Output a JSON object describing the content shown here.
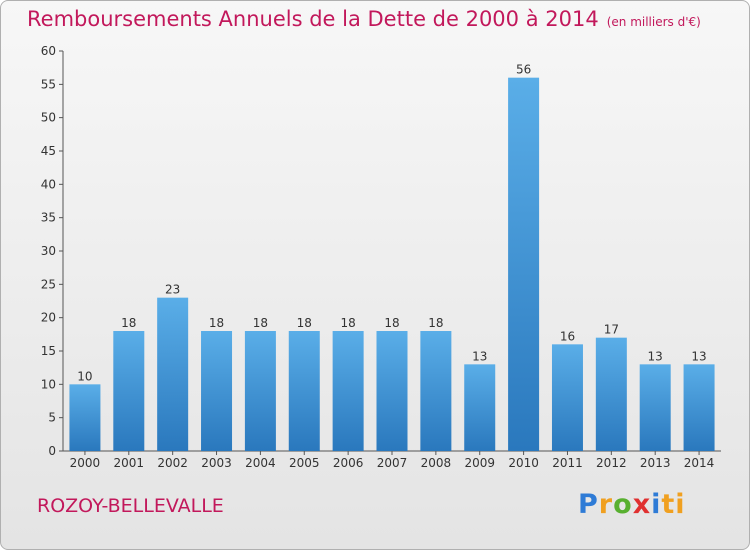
{
  "title": "Remboursements Annuels de la Dette de 2000 à 2014",
  "unit": "(en milliers d'€)",
  "commune": "ROZOY-BELLEVALLE",
  "logo": [
    "P",
    "r",
    "o",
    "x",
    "i",
    "ti"
  ],
  "colors": {
    "title": "#c2185b",
    "bar_top": "#5aaee8",
    "bar_bottom": "#2a78bd"
  },
  "chart_data": {
    "type": "bar",
    "categories": [
      "2000",
      "2001",
      "2002",
      "2003",
      "2004",
      "2005",
      "2006",
      "2007",
      "2008",
      "2009",
      "2010",
      "2011",
      "2012",
      "2013",
      "2014"
    ],
    "values": [
      10,
      18,
      23,
      18,
      18,
      18,
      18,
      18,
      18,
      13,
      56,
      16,
      17,
      13,
      13
    ],
    "data_labels": [
      "10",
      "18",
      "23",
      "18",
      "18",
      "18",
      "18",
      "18",
      "18",
      "13",
      "56",
      "16",
      "17",
      "13",
      "13"
    ],
    "yticks": [
      "0",
      "5",
      "10",
      "15",
      "20",
      "25",
      "30",
      "35",
      "40",
      "45",
      "50",
      "55",
      "60"
    ],
    "ylim": [
      0,
      60
    ],
    "grid": false,
    "legend": "none"
  }
}
